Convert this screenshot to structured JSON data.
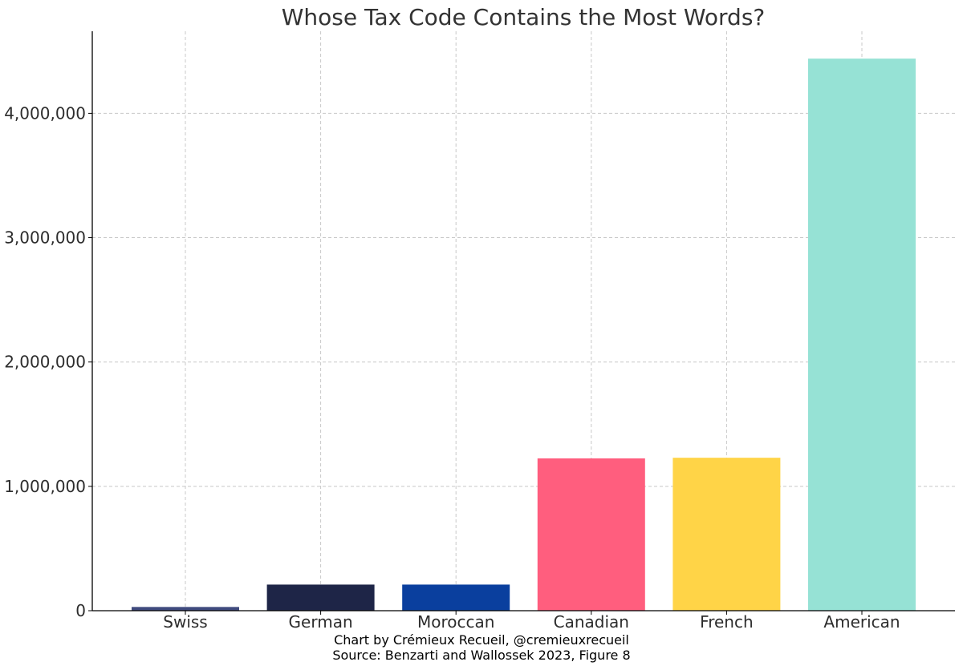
{
  "chart_data": {
    "type": "bar",
    "title": "Whose Tax Code Contains the Most Words?",
    "xlabel": "",
    "ylabel": "",
    "categories": [
      "Swiss",
      "German",
      "Moroccan",
      "Canadian",
      "French",
      "American"
    ],
    "values": [
      30000,
      210000,
      210000,
      1225000,
      1230000,
      4440000
    ],
    "colors": [
      "#3f4a7e",
      "#1e2547",
      "#0a3f9e",
      "#ff5e7e",
      "#ffd447",
      "#96e2d5"
    ],
    "ylim": [
      0,
      4660000
    ],
    "yticks": [
      0,
      1000000,
      2000000,
      3000000,
      4000000
    ],
    "ytick_labels": [
      "0",
      "1,000,000",
      "2,000,000",
      "3,000,000",
      "4,000,000"
    ],
    "grid": true,
    "legend": "none"
  },
  "credits": {
    "line1": "Chart by Crémieux Recueil, @cremieuxrecueil",
    "line2": "Source: Benzarti and Wallossek 2023, Figure 8"
  },
  "colors": {
    "text": "#2d2d2d",
    "grid": "#c8c8c8",
    "axis": "#000000"
  }
}
